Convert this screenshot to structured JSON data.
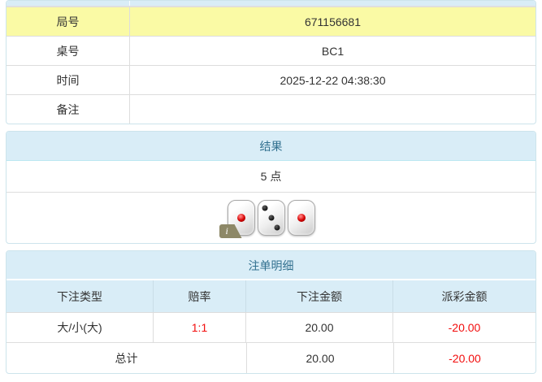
{
  "info_table": {
    "rows": [
      {
        "label": "局号",
        "value": "671156681"
      },
      {
        "label": "桌号",
        "value": "BC1"
      },
      {
        "label": "时间",
        "value": "2025-12-22 04:38:30"
      },
      {
        "label": "备注",
        "value": ""
      }
    ]
  },
  "result_panel": {
    "title": "结果",
    "points": "5 点",
    "dice": [
      1,
      3,
      1
    ],
    "info_icon_glyph": "i"
  },
  "bets_panel": {
    "title": "注单明细",
    "columns": [
      "下注类型",
      "赔率",
      "下注金额",
      "派彩金额"
    ],
    "rows": [
      {
        "type": "大/小(大)",
        "odds": "1:1",
        "bet": "20.00",
        "payout": "-20.00"
      }
    ],
    "total": {
      "label": "总计",
      "bet": "20.00",
      "payout": "-20.00"
    }
  },
  "colors": {
    "heading_bg": "#d9edf7",
    "heading_text": "#31708f",
    "highlight_row_bg": "#fafaa5",
    "negative_amount": "#f20d0d",
    "panel_border": "#bce8f1"
  }
}
